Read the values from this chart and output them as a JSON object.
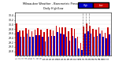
{
  "title": "Milwaukee Weather - Barometric Pressure",
  "subtitle": "Daily High/Low",
  "ylim": [
    28.6,
    30.55
  ],
  "yticks": [
    28.8,
    29.0,
    29.2,
    29.4,
    29.6,
    29.8,
    30.0,
    30.2,
    30.4
  ],
  "ytick_labels": [
    "28.8",
    "29.0",
    "29.2",
    "29.4",
    "29.6",
    "29.8",
    "30.0",
    "30.2",
    "30.4"
  ],
  "bar_width": 0.42,
  "high_color": "#cc0000",
  "low_color": "#0000cc",
  "background_color": "#ffffff",
  "dashed_line_color": "#888888",
  "high_label": "High",
  "low_label": "Low",
  "high_values": [
    30.05,
    29.75,
    29.72,
    29.85,
    29.76,
    29.7,
    29.76,
    29.84,
    29.78,
    29.66,
    29.8,
    29.76,
    29.74,
    29.96,
    29.86,
    29.86,
    29.88,
    29.7,
    29.84,
    29.8,
    29.44,
    29.16,
    29.9,
    30.04,
    29.96,
    29.82,
    29.78,
    29.86,
    29.74,
    29.62,
    29.88
  ],
  "low_values": [
    29.65,
    29.45,
    29.46,
    29.6,
    29.46,
    29.44,
    29.52,
    29.52,
    29.46,
    29.24,
    29.44,
    29.5,
    29.48,
    29.66,
    29.58,
    29.56,
    29.46,
    29.28,
    29.48,
    29.38,
    28.94,
    28.84,
    29.58,
    29.7,
    29.6,
    29.46,
    29.48,
    29.58,
    29.44,
    29.38,
    29.56
  ],
  "dashed_lines": [
    21,
    22,
    23
  ],
  "n_days": 31,
  "bar_bottom": 28.6
}
